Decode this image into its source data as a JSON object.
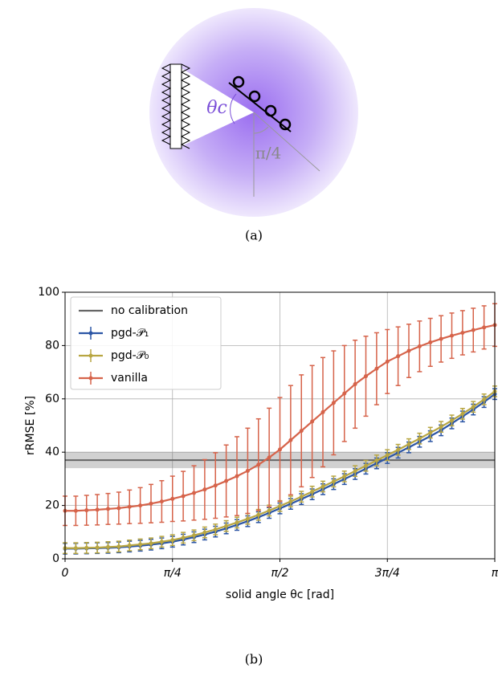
{
  "figure_a": {
    "theta_label": "θc",
    "angle_label": "π/4",
    "caption": "(a)"
  },
  "chart_data": {
    "type": "errorbar-line",
    "xlabel": "solid angle θc [rad]",
    "ylabel": "rRMSE [%]",
    "xlim": [
      0,
      3.1416
    ],
    "ylim": [
      0,
      100
    ],
    "xticks": [
      0,
      {
        "value": 0.7854,
        "label": "π/4"
      },
      {
        "value": 1.5708,
        "label": "π/2"
      },
      {
        "value": 2.3562,
        "label": "3π/4"
      },
      {
        "value": 3.1416,
        "label": "π"
      }
    ],
    "yticks": [
      0,
      20,
      40,
      60,
      80,
      100
    ],
    "grid": true,
    "legend": "upper-left",
    "x": [
      0,
      0.0785,
      0.1571,
      0.2356,
      0.3142,
      0.3927,
      0.4712,
      0.5498,
      0.6283,
      0.7069,
      0.7854,
      0.8639,
      0.9425,
      1.021,
      1.0996,
      1.1781,
      1.2566,
      1.3352,
      1.4137,
      1.4923,
      1.5708,
      1.6493,
      1.7279,
      1.8064,
      1.885,
      1.9635,
      2.042,
      2.1206,
      2.1991,
      2.2777,
      2.3562,
      2.4347,
      2.5133,
      2.5918,
      2.6704,
      2.7489,
      2.8274,
      2.906,
      2.9845,
      3.0631,
      3.1416
    ],
    "reference": {
      "name": "no calibration",
      "color": "#666666",
      "value": 37,
      "std": 3
    },
    "series": [
      {
        "name": "pgd-𝒫₁",
        "color": "#2b55a5",
        "values": [
          3.8,
          3.8,
          3.9,
          4,
          4.1,
          4.3,
          4.6,
          4.9,
          5.3,
          5.8,
          6.4,
          7.2,
          8.1,
          9.1,
          10.2,
          11.4,
          12.7,
          14.1,
          15.6,
          17.2,
          18.9,
          20.6,
          22.4,
          24.2,
          26.1,
          28,
          29.9,
          31.8,
          33.8,
          35.8,
          37.8,
          39.8,
          41.8,
          43.9,
          46,
          48.2,
          50.8,
          53.4,
          56,
          58.8,
          61.8
        ],
        "errors": [
          2,
          2,
          2,
          2,
          2,
          2,
          2,
          2,
          2,
          2,
          2,
          2,
          2,
          2,
          2,
          2,
          2,
          2,
          2,
          2,
          2,
          2,
          2,
          2,
          2,
          2,
          2,
          2,
          2,
          2,
          2,
          2,
          2,
          2,
          2,
          2,
          2,
          2,
          2,
          2,
          2
        ]
      },
      {
        "name": "pgd-𝒫₀",
        "color": "#b8a642",
        "values": [
          4,
          4,
          4.1,
          4.2,
          4.4,
          4.6,
          5,
          5.4,
          5.8,
          6.4,
          7,
          7.9,
          8.8,
          9.9,
          11,
          12.3,
          13.6,
          15,
          16.5,
          18.1,
          19.8,
          21.5,
          23.3,
          25.2,
          27.1,
          29,
          30.9,
          32.9,
          34.9,
          36.9,
          38.9,
          40.9,
          43,
          45.1,
          47.3,
          49.5,
          51.9,
          54.4,
          57,
          59.8,
          62.8
        ],
        "errors": [
          2,
          2,
          2,
          2,
          2,
          2,
          2,
          2,
          2,
          2,
          2,
          2,
          2,
          2,
          2,
          2,
          2,
          2,
          2,
          2,
          2,
          2,
          2,
          2,
          2,
          2,
          2,
          2,
          2,
          2,
          2,
          2,
          2,
          2,
          2,
          2,
          2,
          2,
          2,
          2,
          2
        ]
      },
      {
        "name": "vanilla",
        "color": "#d6634a",
        "values": [
          18,
          18,
          18.2,
          18.4,
          18.7,
          19,
          19.5,
          20,
          20.7,
          21.5,
          22.5,
          23.5,
          24.7,
          26,
          27.5,
          29.2,
          31,
          33,
          35.3,
          38,
          41,
          44.5,
          48,
          51.5,
          55,
          58.5,
          62,
          65.5,
          68.5,
          71.3,
          74,
          76,
          78,
          79.7,
          81.2,
          82.5,
          83.7,
          84.8,
          85.8,
          86.8,
          87.7
        ],
        "errors": [
          5.5,
          5.5,
          5.6,
          5.7,
          5.8,
          6,
          6.3,
          6.7,
          7.2,
          7.8,
          8.5,
          9.3,
          10.2,
          11.2,
          12.3,
          13.5,
          14.8,
          16,
          17.2,
          18.5,
          19.5,
          20.5,
          21,
          21,
          20.5,
          19.5,
          18,
          16.5,
          15,
          13.5,
          12,
          11,
          10,
          9.5,
          9,
          8.7,
          8.5,
          8.3,
          8.2,
          8.1,
          8
        ]
      }
    ]
  },
  "caption_b": "(b)"
}
